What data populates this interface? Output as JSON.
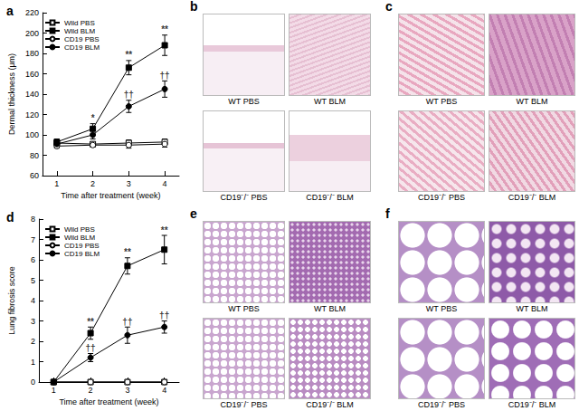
{
  "chart_data": [
    {
      "type": "line",
      "title": "a",
      "x_label": "Time after treatment (week)",
      "y_label": "Dermal thickness (μm)",
      "x": [
        1,
        2,
        3,
        4
      ],
      "xlim": [
        0.6,
        4.4
      ],
      "xticks": [
        1,
        2,
        3,
        4
      ],
      "ylim": [
        60,
        220
      ],
      "yticks": [
        60,
        80,
        100,
        120,
        140,
        160,
        180,
        200,
        220
      ],
      "grid": false,
      "legend": "upper left",
      "series": [
        {
          "name": "Wild PBS",
          "color": "#000000",
          "marker": "square-open",
          "values": [
            92,
            91,
            92,
            93
          ],
          "errors": [
            2,
            2,
            3,
            3
          ]
        },
        {
          "name": "Wild BLM",
          "color": "#000000",
          "marker": "square",
          "values": [
            93,
            106,
            166,
            188
          ],
          "errors": [
            3,
            5,
            7,
            10
          ]
        },
        {
          "name": "CD19 PBS",
          "color": "#000000",
          "marker": "circle-open",
          "values": [
            89,
            90,
            90,
            91
          ],
          "errors": [
            2,
            2,
            3,
            3
          ]
        },
        {
          "name": "CD19 BLM",
          "color": "#000000",
          "marker": "circle",
          "values": [
            91,
            100,
            128,
            145
          ],
          "errors": [
            3,
            4,
            6,
            8
          ]
        }
      ],
      "annotations": [
        {
          "text": "*",
          "series": "Wild BLM",
          "x": 2
        },
        {
          "text": "**",
          "series": "Wild BLM",
          "x": 3
        },
        {
          "text": "**",
          "series": "Wild BLM",
          "x": 4
        },
        {
          "text": "††",
          "series": "CD19 BLM",
          "x": 3
        },
        {
          "text": "††",
          "series": "CD19 BLM",
          "x": 4
        }
      ]
    },
    {
      "type": "line",
      "title": "d",
      "x_label": "Time after treatment (week)",
      "y_label": "Lung fibrosis score",
      "x": [
        1,
        2,
        3,
        4
      ],
      "xlim": [
        0.6,
        4.4
      ],
      "xticks": [
        1,
        2,
        3,
        4
      ],
      "ylim": [
        0,
        8
      ],
      "yticks": [
        0,
        1,
        2,
        3,
        4,
        5,
        6,
        7,
        8
      ],
      "grid": false,
      "legend": "upper left",
      "series": [
        {
          "name": "Wild PBS",
          "color": "#000000",
          "marker": "square-open",
          "values": [
            0,
            0,
            0,
            0
          ],
          "errors": [
            0,
            0,
            0,
            0
          ]
        },
        {
          "name": "Wild BLM",
          "color": "#000000",
          "marker": "square",
          "values": [
            0,
            2.4,
            5.7,
            6.5
          ],
          "errors": [
            0,
            0.3,
            0.4,
            0.7
          ]
        },
        {
          "name": "CD19 PBS",
          "color": "#000000",
          "marker": "circle-open",
          "values": [
            0,
            0,
            0,
            0
          ],
          "errors": [
            0,
            0,
            0,
            0
          ]
        },
        {
          "name": "CD19 BLM",
          "color": "#000000",
          "marker": "circle",
          "values": [
            0,
            1.2,
            2.3,
            2.7
          ],
          "errors": [
            0,
            0.2,
            0.4,
            0.3
          ]
        }
      ],
      "annotations": [
        {
          "text": "**",
          "series": "Wild BLM",
          "x": 2
        },
        {
          "text": "**",
          "series": "Wild BLM",
          "x": 3
        },
        {
          "text": "**",
          "series": "Wild BLM",
          "x": 4
        },
        {
          "text": "††",
          "series": "CD19 BLM",
          "x": 2
        },
        {
          "text": "††",
          "series": "CD19 BLM",
          "x": 3
        },
        {
          "text": "††",
          "series": "CD19 BLM",
          "x": 4
        }
      ]
    }
  ],
  "images": [
    {
      "title": "b",
      "labels": [
        "WT PBS",
        "WT BLM",
        "CD19⁻/⁻ PBS",
        "CD19⁻/⁻ BLM"
      ]
    },
    {
      "title": "c",
      "labels": [
        "WT PBS",
        "WT BLM",
        "CD19⁻/⁻ PBS",
        "CD19⁻/⁻ BLM"
      ]
    },
    {
      "title": "e",
      "labels": [
        "WT PBS",
        "WT BLM",
        "CD19⁻/⁻ PBS",
        "CD19⁻/⁻ BLM"
      ]
    },
    {
      "title": "f",
      "labels": [
        "WT PBS",
        "WT BLM",
        "CD19⁻/⁻ PBS",
        "CD19⁻/⁻ BLM"
      ]
    }
  ]
}
